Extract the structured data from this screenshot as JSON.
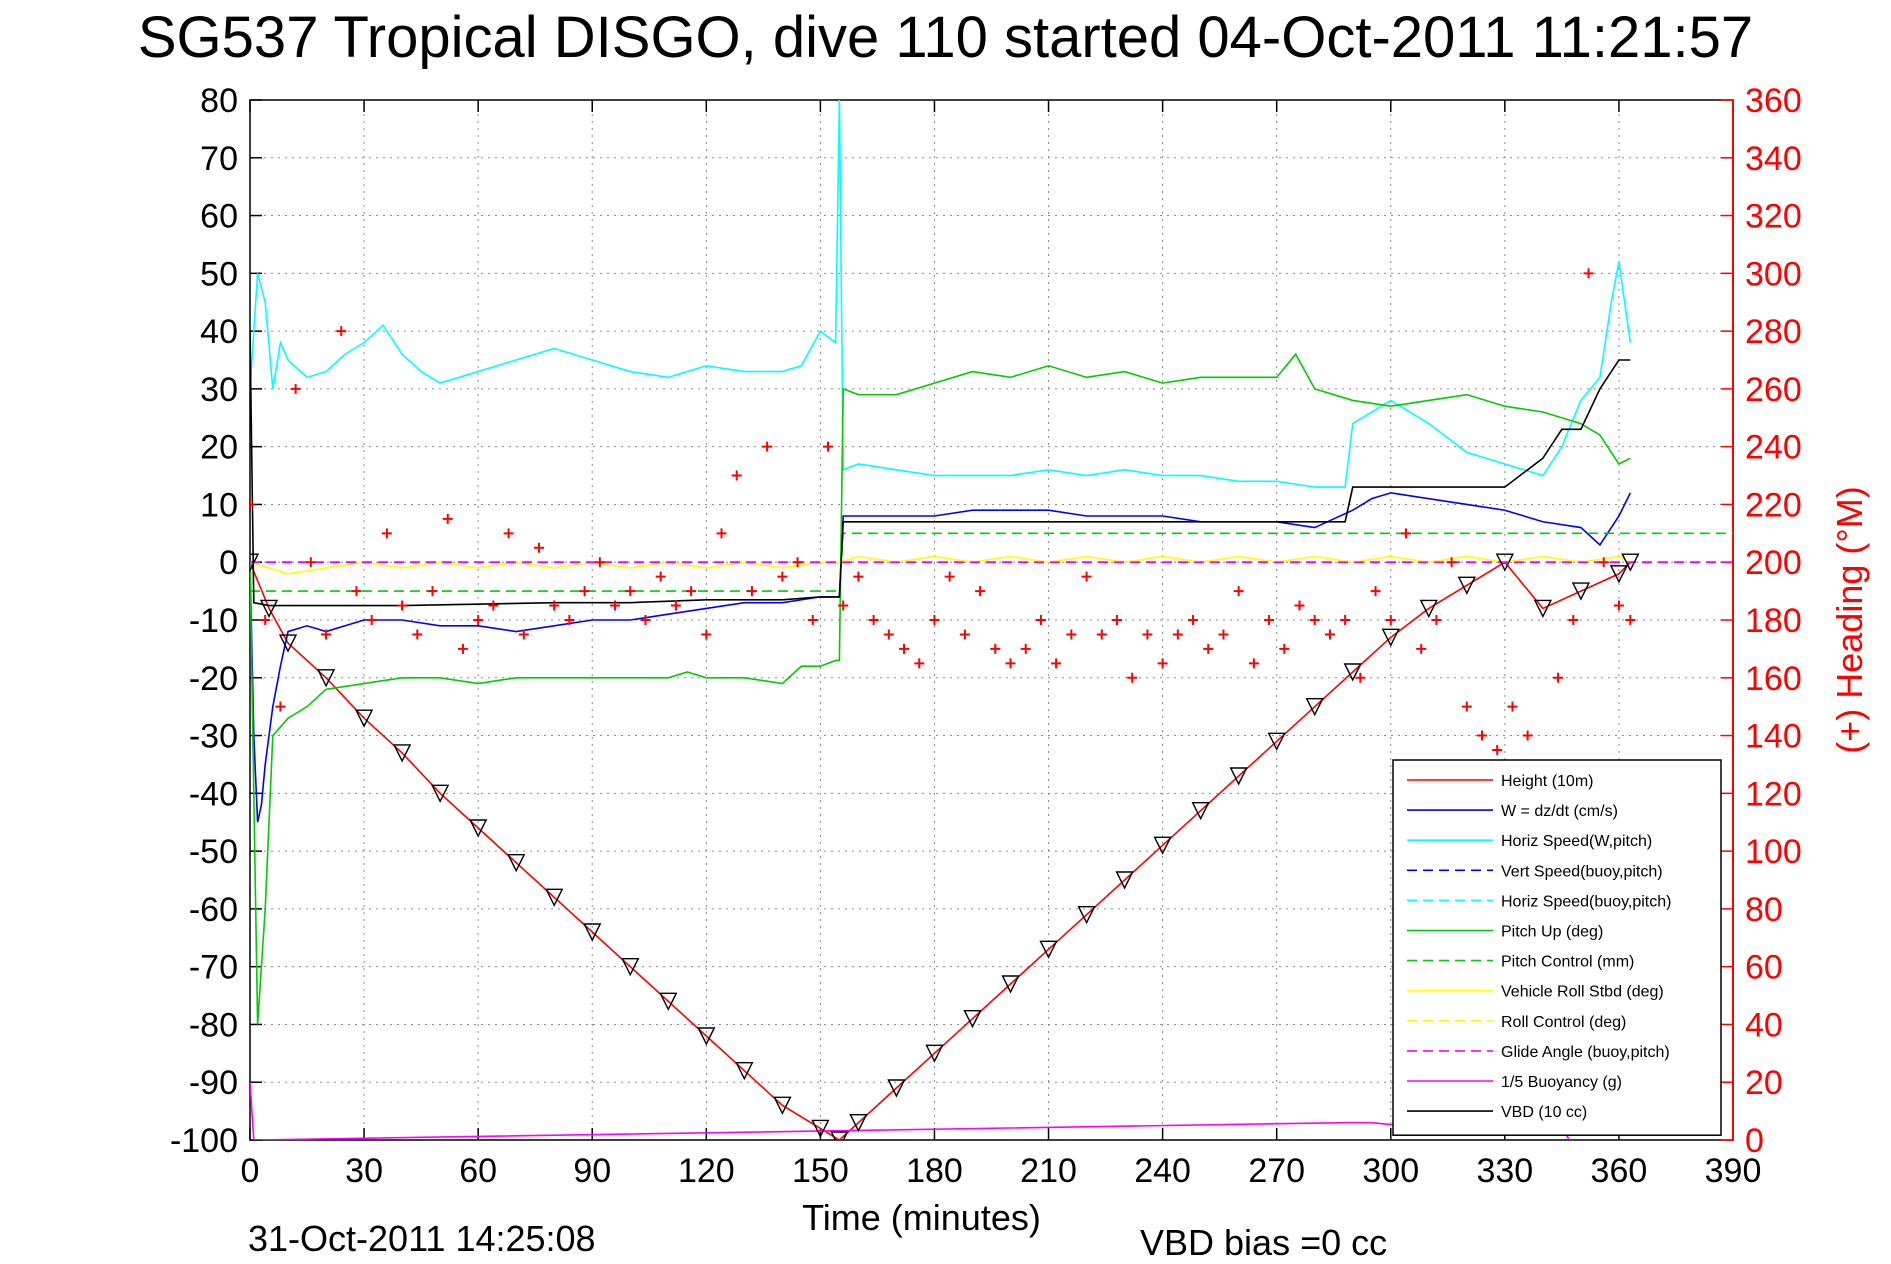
{
  "title": "SG537 Tropical DISGO, dive 110 started 04-Oct-2011 11:21:57",
  "footer": {
    "date": "31-Oct-2011 14:25:08",
    "vbd_bias": "VBD bias =0 cc"
  },
  "chart_data": {
    "type": "line",
    "title": "SG537 Tropical DISGO, dive 110 started 04-Oct-2011 11:21:57",
    "xlabel": "Time (minutes)",
    "ylabel": "",
    "y2label": "(+) Heading (°M)",
    "xlim": [
      0,
      390
    ],
    "ylim": [
      -100,
      80
    ],
    "y2lim": [
      0,
      360
    ],
    "xticks": [
      0,
      30,
      60,
      90,
      120,
      150,
      180,
      210,
      240,
      270,
      300,
      330,
      360,
      390
    ],
    "yticks": [
      80,
      70,
      60,
      50,
      40,
      30,
      20,
      10,
      0,
      -10,
      -20,
      -30,
      -40,
      -50,
      -60,
      -70,
      -80,
      -90,
      -100
    ],
    "y2ticks": [
      360,
      340,
      320,
      300,
      280,
      260,
      240,
      220,
      200,
      180,
      160,
      140,
      120,
      100,
      80,
      60,
      40,
      20,
      0
    ],
    "grid": true,
    "legend_position": "bottom-right",
    "colors": {
      "height": "#ff0000",
      "w": "#0000ff",
      "horiz_speed": "#00ffff",
      "pitch": "#00cc00",
      "roll": "#ffff00",
      "glide": "#ff00ff",
      "vbd": "#000000",
      "heading": "#ff0000",
      "axis_right": "#ff0000"
    },
    "series": [
      {
        "name": "Height (10m)",
        "color": "#ff0000",
        "style": "solid",
        "x": [
          0,
          5,
          10,
          20,
          30,
          40,
          50,
          60,
          70,
          80,
          90,
          100,
          110,
          120,
          130,
          140,
          150,
          155,
          160,
          170,
          180,
          190,
          200,
          210,
          220,
          230,
          240,
          250,
          260,
          270,
          280,
          290,
          300,
          310,
          320,
          330,
          340,
          350,
          360,
          363
        ],
        "y": [
          0,
          -8,
          -14,
          -20,
          -27,
          -33,
          -40,
          -46,
          -52,
          -58,
          -64,
          -70,
          -76,
          -82,
          -88,
          -94,
          -98,
          -100,
          -97,
          -91,
          -85,
          -79,
          -73,
          -67,
          -61,
          -55,
          -49,
          -43,
          -37,
          -31,
          -25,
          -19,
          -13,
          -8,
          -4,
          0,
          -8,
          -5,
          -2,
          0
        ]
      },
      {
        "name": "W = dz/dt (cm/s)",
        "color": "#0000ff",
        "style": "solid",
        "x": [
          0,
          1,
          2,
          3,
          4,
          6,
          8,
          10,
          15,
          20,
          30,
          40,
          50,
          60,
          70,
          80,
          90,
          100,
          110,
          120,
          130,
          140,
          150,
          155,
          156,
          160,
          170,
          180,
          190,
          200,
          210,
          220,
          230,
          240,
          250,
          260,
          270,
          280,
          290,
          295,
          300,
          310,
          320,
          330,
          340,
          350,
          355,
          360,
          363
        ],
        "y": [
          0,
          -30,
          -45,
          -42,
          -35,
          -25,
          -18,
          -12,
          -11,
          -12,
          -10,
          -10,
          -11,
          -11,
          -12,
          -11,
          -10,
          -10,
          -9,
          -8,
          -7,
          -7,
          -6,
          -6,
          8,
          8,
          8,
          8,
          9,
          9,
          9,
          8,
          8,
          8,
          7,
          7,
          7,
          6,
          9,
          11,
          12,
          11,
          10,
          9,
          7,
          6,
          3,
          8,
          12
        ]
      },
      {
        "name": "Horiz Speed(W,pitch)",
        "color": "#00ffff",
        "style": "solid",
        "x": [
          0,
          2,
          4,
          6,
          8,
          10,
          15,
          20,
          25,
          30,
          35,
          40,
          45,
          50,
          60,
          70,
          80,
          90,
          100,
          110,
          115,
          120,
          130,
          140,
          145,
          150,
          154,
          155,
          156,
          160,
          170,
          180,
          190,
          200,
          210,
          220,
          230,
          240,
          250,
          260,
          270,
          280,
          288,
          290,
          300,
          310,
          320,
          330,
          340,
          345,
          350,
          355,
          358,
          360,
          363
        ],
        "y": [
          30,
          50,
          45,
          30,
          38,
          35,
          32,
          33,
          36,
          38,
          41,
          36,
          33,
          31,
          33,
          35,
          37,
          35,
          33,
          32,
          33,
          34,
          33,
          33,
          34,
          40,
          38,
          80,
          16,
          17,
          16,
          15,
          15,
          15,
          16,
          15,
          16,
          15,
          15,
          14,
          14,
          13,
          13,
          24,
          28,
          24,
          19,
          17,
          15,
          20,
          28,
          32,
          45,
          52,
          38
        ]
      },
      {
        "name": "Vert Speed(buoy,pitch)",
        "color": "#0000ff",
        "style": "dashed",
        "x": [
          0,
          390
        ],
        "y": [
          0,
          0
        ]
      },
      {
        "name": "Horiz Speed(buoy,pitch)",
        "color": "#00ffff",
        "style": "dashed",
        "x": [
          0,
          390
        ],
        "y": [
          0,
          0
        ]
      },
      {
        "name": "Pitch Up (deg)",
        "color": "#00cc00",
        "style": "solid",
        "x": [
          0,
          2,
          4,
          6,
          10,
          15,
          20,
          30,
          40,
          50,
          60,
          70,
          80,
          90,
          100,
          110,
          115,
          120,
          130,
          140,
          145,
          150,
          154,
          155,
          156,
          160,
          170,
          180,
          190,
          200,
          210,
          220,
          230,
          240,
          250,
          260,
          270,
          275,
          280,
          290,
          300,
          310,
          320,
          330,
          340,
          350,
          355,
          360,
          363
        ],
        "y": [
          0,
          -80,
          -60,
          -30,
          -27,
          -25,
          -22,
          -21,
          -20,
          -20,
          -21,
          -20,
          -20,
          -20,
          -20,
          -20,
          -19,
          -20,
          -20,
          -21,
          -18,
          -18,
          -17,
          -17,
          30,
          29,
          29,
          31,
          33,
          32,
          34,
          32,
          33,
          31,
          32,
          32,
          32,
          36,
          30,
          28,
          27,
          28,
          29,
          27,
          26,
          24,
          22,
          17,
          18
        ]
      },
      {
        "name": "Pitch Control (mm)",
        "color": "#00cc00",
        "style": "dashed",
        "x": [
          0,
          155,
          156,
          390
        ],
        "y": [
          -5,
          -5,
          5,
          5
        ]
      },
      {
        "name": "Vehicle Roll Stbd (deg)",
        "color": "#ffff00",
        "style": "solid",
        "x": [
          0,
          10,
          20,
          30,
          40,
          50,
          60,
          70,
          80,
          90,
          100,
          110,
          120,
          130,
          140,
          150,
          155,
          160,
          170,
          180,
          190,
          200,
          210,
          220,
          230,
          240,
          250,
          260,
          270,
          280,
          290,
          300,
          310,
          320,
          330,
          340,
          350,
          360,
          363
        ],
        "y": [
          0,
          -2,
          -1,
          0,
          -1,
          0,
          -1,
          0,
          -1,
          0,
          -1,
          0,
          -1,
          0,
          -1,
          0,
          0,
          1,
          0,
          1,
          0,
          1,
          0,
          1,
          0,
          1,
          0,
          1,
          0,
          1,
          0,
          1,
          0,
          1,
          0,
          1,
          0,
          1,
          0
        ]
      },
      {
        "name": "Roll Control (deg)",
        "color": "#ffff00",
        "style": "dashed",
        "x": [
          0,
          390
        ],
        "y": [
          0,
          0
        ]
      },
      {
        "name": "Glide Angle (buoy,pitch)",
        "color": "#ff00ff",
        "style": "dashed",
        "x": [
          0,
          390
        ],
        "y": [
          0,
          0
        ]
      },
      {
        "name": "1/5 Buoyancy (g)",
        "color": "#ff00ff",
        "style": "solid",
        "x": [
          0,
          1,
          288,
          295,
          310,
          320,
          345,
          347
        ],
        "y": [
          -90,
          -100,
          -97,
          -97,
          -98,
          -99,
          -98,
          -100
        ]
      },
      {
        "name": "VBD (10 cc)",
        "color": "#000000",
        "style": "solid",
        "x": [
          0,
          1,
          5,
          10,
          20,
          40,
          80,
          100,
          120,
          140,
          150,
          155,
          156,
          160,
          200,
          240,
          280,
          288,
          290,
          320,
          330,
          340,
          345,
          350,
          355,
          358,
          360,
          363
        ],
        "y": [
          40,
          -7,
          -7.5,
          -7.5,
          -7.5,
          -7.5,
          -7,
          -7,
          -6.5,
          -6.5,
          -6,
          -6,
          7,
          7,
          7,
          7,
          7,
          7,
          13,
          13,
          13,
          18,
          23,
          23,
          30,
          33,
          35,
          35
        ]
      },
      {
        "name": "(+) Heading (°M)",
        "color": "#ff0000",
        "style": "markers",
        "axis": "y2",
        "x": [
          0,
          4,
          8,
          12,
          16,
          20,
          24,
          28,
          32,
          36,
          40,
          44,
          48,
          52,
          56,
          60,
          64,
          68,
          72,
          76,
          80,
          84,
          88,
          92,
          96,
          100,
          104,
          108,
          112,
          116,
          120,
          124,
          128,
          132,
          136,
          140,
          144,
          148,
          152,
          156,
          160,
          164,
          168,
          172,
          176,
          180,
          184,
          188,
          192,
          196,
          200,
          204,
          208,
          212,
          216,
          220,
          224,
          228,
          232,
          236,
          240,
          244,
          248,
          252,
          256,
          260,
          264,
          268,
          272,
          276,
          280,
          284,
          288,
          292,
          296,
          300,
          304,
          308,
          312,
          316,
          320,
          324,
          328,
          332,
          336,
          340,
          344,
          348,
          352,
          356,
          360,
          363
        ],
        "y": [
          220,
          180,
          150,
          260,
          200,
          175,
          280,
          190,
          180,
          210,
          185,
          175,
          190,
          215,
          170,
          180,
          185,
          210,
          175,
          205,
          185,
          180,
          190,
          200,
          185,
          190,
          180,
          195,
          185,
          190,
          175,
          210,
          230,
          190,
          240,
          195,
          200,
          180,
          240,
          185,
          195,
          180,
          175,
          170,
          165,
          180,
          195,
          175,
          190,
          170,
          165,
          170,
          180,
          165,
          175,
          195,
          175,
          180,
          160,
          175,
          165,
          175,
          180,
          170,
          175,
          190,
          165,
          180,
          170,
          185,
          180,
          175,
          180,
          160,
          190,
          180,
          210,
          170,
          180,
          200,
          150,
          140,
          135,
          150,
          140,
          130,
          160,
          180,
          300,
          200,
          185,
          180
        ]
      }
    ]
  }
}
